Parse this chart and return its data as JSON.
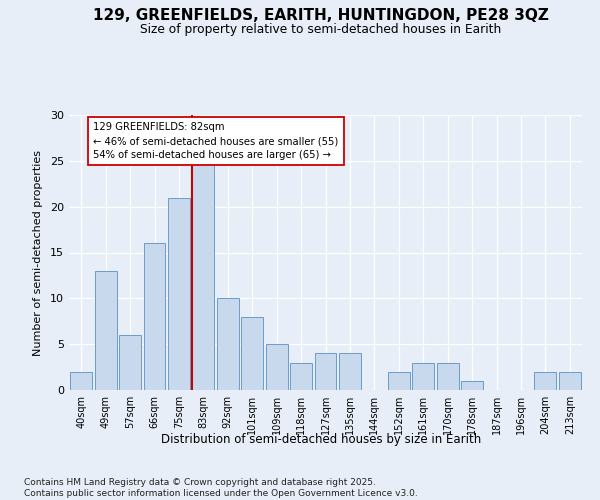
{
  "title1": "129, GREENFIELDS, EARITH, HUNTINGDON, PE28 3QZ",
  "title2": "Size of property relative to semi-detached houses in Earith",
  "xlabel": "Distribution of semi-detached houses by size in Earith",
  "ylabel": "Number of semi-detached properties",
  "categories": [
    "40sqm",
    "49sqm",
    "57sqm",
    "66sqm",
    "75sqm",
    "83sqm",
    "92sqm",
    "101sqm",
    "109sqm",
    "118sqm",
    "127sqm",
    "135sqm",
    "144sqm",
    "152sqm",
    "161sqm",
    "170sqm",
    "178sqm",
    "187sqm",
    "196sqm",
    "204sqm",
    "213sqm"
  ],
  "values": [
    2,
    13,
    6,
    16,
    21,
    25,
    10,
    8,
    5,
    3,
    4,
    4,
    0,
    2,
    3,
    3,
    1,
    0,
    0,
    2,
    2
  ],
  "bar_color": "#c9d9ed",
  "bar_edge_color": "#6a9cc9",
  "property_label": "129 GREENFIELDS: 82sqm",
  "pct_smaller": 46,
  "n_smaller": 55,
  "pct_larger": 54,
  "n_larger": 65,
  "vline_color": "#cc0000",
  "annotation_box_color": "#cc0000",
  "ylim": [
    0,
    30
  ],
  "yticks": [
    0,
    5,
    10,
    15,
    20,
    25,
    30
  ],
  "footer": "Contains HM Land Registry data © Crown copyright and database right 2025.\nContains public sector information licensed under the Open Government Licence v3.0.",
  "bg_color": "#e8eef7",
  "plot_bg_color": "#e8eef7",
  "vline_bar_index": 5
}
